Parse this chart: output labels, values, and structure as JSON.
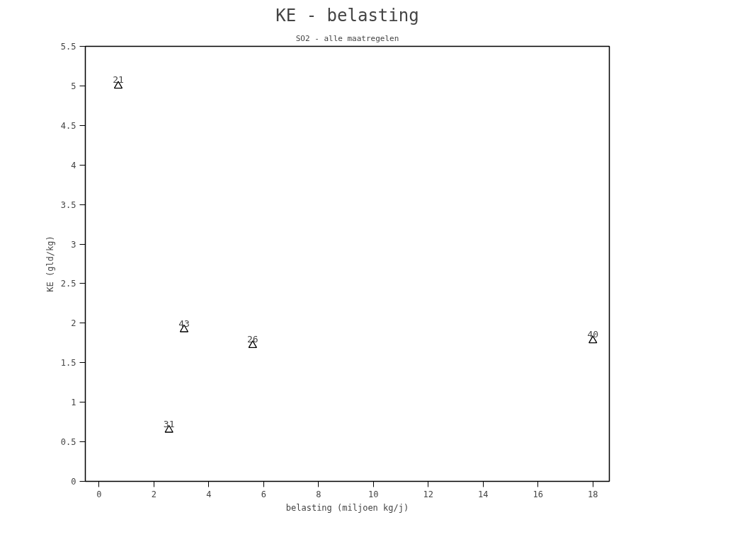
{
  "chart_data": {
    "type": "scatter",
    "title": "KE - belasting",
    "subtitle": "SO2 - alle maatregelen",
    "xlabel": "belasting (miljoen kg/j)",
    "ylabel": "KE (gld/kg)",
    "x": [
      0.7,
      3.1,
      5.6,
      2.55,
      18.0
    ],
    "series": [
      {
        "color": "#000000",
        "values": [
          5.0,
          1.92,
          1.72,
          0.65,
          1.78
        ]
      }
    ],
    "marker": "triangle",
    "grid": false,
    "xlim": [
      -0.5,
      18.6
    ],
    "xticks": [
      0,
      2,
      4,
      6,
      8,
      10,
      12,
      14,
      16,
      18
    ],
    "ylim": [
      0,
      5.5
    ],
    "yticks": [
      0,
      0.5,
      1,
      1.5,
      2,
      2.5,
      3,
      3.5,
      4,
      4.5,
      5,
      5.5
    ],
    "annotations": [
      {
        "text": "21",
        "x": 0.7,
        "y": 5.0
      },
      {
        "text": "43",
        "x": 3.1,
        "y": 1.92
      },
      {
        "text": "26",
        "x": 5.6,
        "y": 1.72
      },
      {
        "text": "31",
        "x": 2.55,
        "y": 0.65
      },
      {
        "text": "40",
        "x": 18.0,
        "y": 1.78
      }
    ]
  }
}
